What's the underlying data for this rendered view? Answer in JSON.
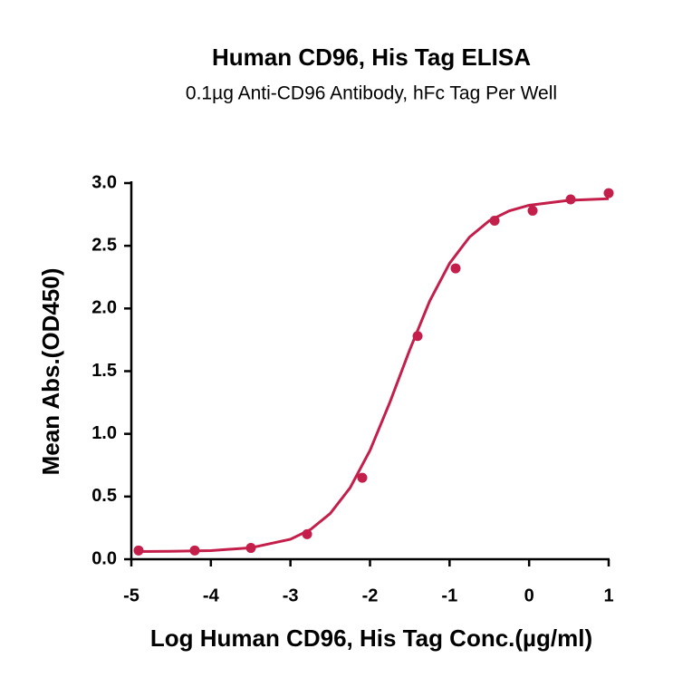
{
  "chart_data": {
    "type": "scatter",
    "title": "Human CD96, His Tag ELISA",
    "subtitle": "0.1µg Anti-CD96 Antibody, hFc Tag Per Well",
    "x_label": "Log Human CD96, His Tag Conc.(µg/ml)",
    "y_label": "Mean Abs.(OD450)",
    "xlim": [
      -5,
      1
    ],
    "xticks": [
      -5,
      -4,
      -3,
      -2,
      -1,
      0,
      1
    ],
    "ylim": [
      0,
      3
    ],
    "yticks": [
      {
        "value": 0,
        "label": "0.0"
      },
      0.5,
      {
        "value": 1,
        "label": "1.0"
      },
      1.5,
      {
        "value": 2,
        "label": "2.0"
      },
      2.5,
      {
        "value": 3,
        "label": "3.0"
      }
    ],
    "color": "#c41e4a",
    "series": [
      {
        "type": "scatter",
        "color": "#c41e4a",
        "x": [
          -4.909,
          -4.203,
          -3.497,
          -2.791,
          -2.097,
          -1.402,
          -0.924,
          -0.434,
          0.044,
          0.522,
          1.0
        ],
        "values": [
          0.07,
          0.07,
          0.09,
          0.2,
          0.65,
          1.78,
          2.32,
          2.7,
          2.78,
          2.87,
          2.92
        ]
      },
      {
        "type": "line",
        "color": "#c41e4a",
        "x": [
          -4.9,
          -4.5,
          -4.0,
          -3.5,
          -3.0,
          -2.75,
          -2.5,
          -2.25,
          -2.0,
          -1.75,
          -1.5,
          -1.25,
          -1.0,
          -0.75,
          -0.5,
          -0.25,
          0,
          0.5,
          1.0
        ],
        "values": [
          0.061,
          0.063,
          0.069,
          0.091,
          0.159,
          0.236,
          0.365,
          0.57,
          0.868,
          1.252,
          1.671,
          2.059,
          2.36,
          2.569,
          2.7,
          2.778,
          2.823,
          2.863,
          2.875
        ]
      }
    ]
  }
}
